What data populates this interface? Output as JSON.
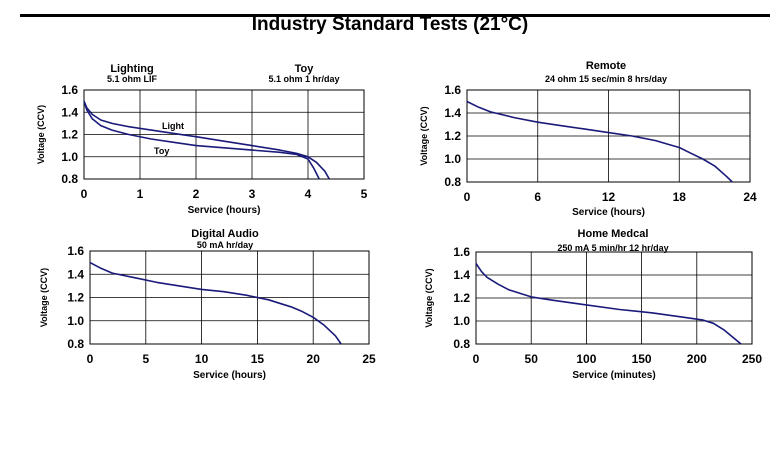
{
  "page_title": "Industry Standard Tests (21°C)",
  "colors": {
    "curve": "#1a1a7a",
    "grid": "#000000",
    "axis": "#000000"
  },
  "chart_data": [
    {
      "type": "line",
      "titles": [
        {
          "title": "Lighting",
          "subtitle": "5.1 ohm LIF"
        },
        {
          "title": "Toy",
          "subtitle": "5.1 ohm 1 hr/day"
        }
      ],
      "xlabel": "Service (hours)",
      "ylabel": "Voltage (CCV)",
      "xlim": [
        0,
        5
      ],
      "ylim": [
        0.8,
        1.6
      ],
      "xticks": [
        "0",
        "1",
        "2",
        "3",
        "4",
        "5"
      ],
      "yticks": [
        "1.6",
        "1.4",
        "1.2",
        "1.0",
        "0.8"
      ],
      "grid": true,
      "series": [
        {
          "name": "Light",
          "x": [
            0,
            0.05,
            0.15,
            0.3,
            0.5,
            0.8,
            1.2,
            1.6,
            2.0,
            2.5,
            3.0,
            3.5,
            3.8,
            4.0,
            4.15,
            4.3,
            4.38
          ],
          "y": [
            1.5,
            1.44,
            1.38,
            1.33,
            1.3,
            1.27,
            1.24,
            1.21,
            1.18,
            1.14,
            1.1,
            1.06,
            1.03,
            1.0,
            0.95,
            0.87,
            0.8
          ]
        },
        {
          "name": "Toy",
          "x": [
            0,
            0.05,
            0.15,
            0.3,
            0.5,
            0.8,
            1.2,
            1.6,
            2.0,
            2.5,
            3.0,
            3.5,
            3.8,
            4.0,
            4.1,
            4.2
          ],
          "y": [
            1.5,
            1.42,
            1.34,
            1.28,
            1.24,
            1.2,
            1.16,
            1.13,
            1.1,
            1.08,
            1.06,
            1.04,
            1.02,
            0.98,
            0.9,
            0.8
          ]
        }
      ]
    },
    {
      "type": "line",
      "title": "Remote",
      "subtitle": "24 ohm 15 sec/min 8 hrs/day",
      "xlabel": "Service (hours)",
      "ylabel": "Voltage (CCV)",
      "xlim": [
        0,
        24
      ],
      "ylim": [
        0.8,
        1.6
      ],
      "xticks": [
        "0",
        "6",
        "12",
        "18",
        "24"
      ],
      "yticks": [
        "1.6",
        "1.4",
        "1.2",
        "1.0",
        "0.8"
      ],
      "grid": true,
      "series": [
        {
          "x": [
            0,
            1,
            2,
            4,
            6,
            8,
            10,
            12,
            14,
            16,
            17,
            18,
            19,
            20,
            21,
            22,
            22.5
          ],
          "y": [
            1.5,
            1.45,
            1.41,
            1.36,
            1.32,
            1.29,
            1.26,
            1.23,
            1.2,
            1.16,
            1.13,
            1.1,
            1.05,
            1.0,
            0.94,
            0.85,
            0.8
          ]
        }
      ]
    },
    {
      "type": "line",
      "title": "Digital Audio",
      "subtitle": "50 mA  hr/day",
      "xlabel": "Service (hours)",
      "ylabel": "Voltage (CCV)",
      "xlim": [
        0,
        25
      ],
      "ylim": [
        0.8,
        1.6
      ],
      "xticks": [
        "0",
        "5",
        "10",
        "15",
        "20",
        "25"
      ],
      "yticks": [
        "1.6",
        "1.4",
        "1.2",
        "1.0",
        "0.8"
      ],
      "grid": true,
      "series": [
        {
          "x": [
            0,
            1,
            2,
            4,
            6,
            8,
            10,
            12,
            14,
            16,
            17,
            18,
            19,
            20,
            21,
            22,
            22.5
          ],
          "y": [
            1.5,
            1.45,
            1.41,
            1.37,
            1.33,
            1.3,
            1.27,
            1.25,
            1.22,
            1.18,
            1.15,
            1.12,
            1.08,
            1.03,
            0.96,
            0.87,
            0.8
          ]
        }
      ]
    },
    {
      "type": "line",
      "title": "Home Medcal",
      "subtitle": "250 mA 5 min/hr 12 hr/day",
      "xlabel": "Service (minutes)",
      "ylabel": "Voltage (CCV)",
      "xlim": [
        0,
        250
      ],
      "ylim": [
        0.8,
        1.6
      ],
      "xticks": [
        "0",
        "50",
        "100",
        "150",
        "200",
        "250"
      ],
      "yticks": [
        "1.6",
        "1.4",
        "1.2",
        "1.0",
        "0.8"
      ],
      "grid": true,
      "series": [
        {
          "x": [
            0,
            5,
            10,
            20,
            30,
            40,
            50,
            70,
            100,
            130,
            160,
            190,
            205,
            215,
            225,
            235,
            240
          ],
          "y": [
            1.5,
            1.43,
            1.38,
            1.32,
            1.27,
            1.24,
            1.21,
            1.18,
            1.14,
            1.1,
            1.07,
            1.03,
            1.01,
            0.98,
            0.92,
            0.84,
            0.8
          ]
        }
      ]
    }
  ]
}
